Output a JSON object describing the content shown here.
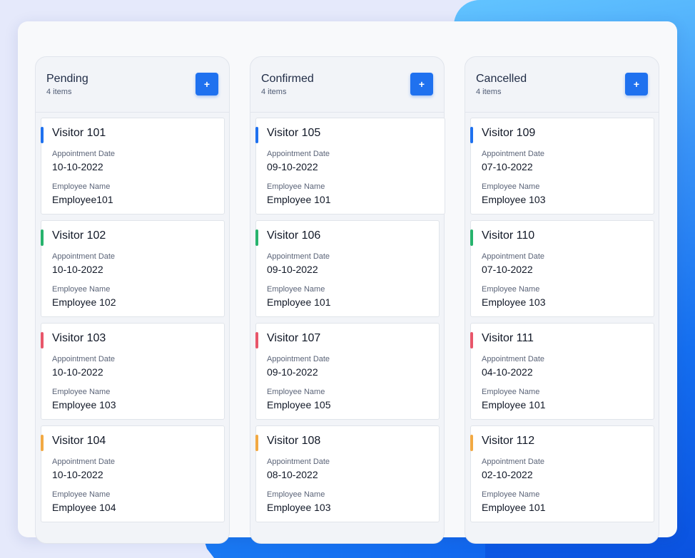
{
  "colors": {
    "accent": "#1f71ef",
    "bar_blue": "#1f71ef",
    "bar_green": "#27b36d",
    "bar_red": "#e8566a",
    "bar_orange": "#f2a943"
  },
  "icons": {
    "add": "+"
  },
  "labels": {
    "appointment_date": "Appointment Date",
    "employee_name": "Employee Name"
  },
  "columns": [
    {
      "title": "Pending",
      "count": "4 items",
      "cards": [
        {
          "visitor": "Visitor 101",
          "date": "10-10-2022",
          "employee": "Employee101"
        },
        {
          "visitor": "Visitor 102",
          "date": "10-10-2022",
          "employee": "Employee 102"
        },
        {
          "visitor": "Visitor 103",
          "date": "10-10-2022",
          "employee": "Employee 103"
        },
        {
          "visitor": "Visitor 104",
          "date": "10-10-2022",
          "employee": "Employee 104"
        }
      ]
    },
    {
      "title": "Confirmed",
      "count": "4 items",
      "cards": [
        {
          "visitor": "Visitor 105",
          "date": "09-10-2022",
          "employee": "Employee 101"
        },
        {
          "visitor": "Visitor 106",
          "date": "09-10-2022",
          "employee": "Employee 101"
        },
        {
          "visitor": "Visitor 107",
          "date": "09-10-2022",
          "employee": "Employee 105"
        },
        {
          "visitor": "Visitor 108",
          "date": "08-10-2022",
          "employee": "Employee 103"
        }
      ]
    },
    {
      "title": "Cancelled",
      "count": "4 items",
      "cards": [
        {
          "visitor": "Visitor 109",
          "date": "07-10-2022",
          "employee": "Employee 103"
        },
        {
          "visitor": "Visitor 110",
          "date": "07-10-2022",
          "employee": "Employee 103"
        },
        {
          "visitor": "Visitor 111",
          "date": "04-10-2022",
          "employee": "Employee 101"
        },
        {
          "visitor": "Visitor 112",
          "date": "02-10-2022",
          "employee": "Employee 101"
        }
      ]
    }
  ]
}
